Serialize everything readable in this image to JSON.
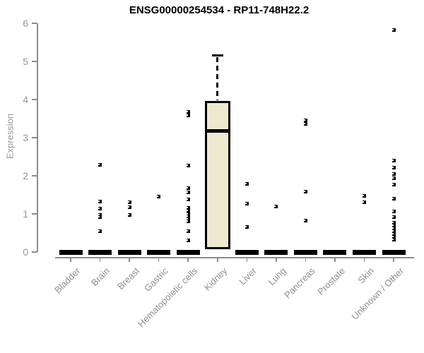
{
  "chart_data": {
    "type": "boxplot",
    "title": "ENSG00000254534 - RP11-748H22.2",
    "ylabel": "Expression",
    "xlabel": "",
    "ylim": [
      0,
      6
    ],
    "yticks": [
      0,
      1,
      2,
      3,
      4,
      5,
      6
    ],
    "grid": false,
    "legend": "none",
    "colors": {
      "box_fill": "#EDE8CF",
      "box_border": "#000000",
      "marker": "#000000",
      "axis": "#8c8c8c",
      "tick_label": "#979797",
      "title": "#000000",
      "background": "#ffffff"
    },
    "marker_style": "small-black-square",
    "categories": [
      "Bladder",
      "Brain",
      "Breast",
      "Gastric",
      "Hematopoietic cells",
      "Kidney",
      "Liver",
      "Lung",
      "Pancreas",
      "Prostate",
      "Skin",
      "Unknown / Other"
    ],
    "boxes": [
      {
        "category": "Bladder",
        "collapsed": true,
        "q1": 0,
        "median": 0,
        "q3": 0,
        "whisker_low": 0,
        "whisker_high": 0,
        "outliers": []
      },
      {
        "category": "Brain",
        "collapsed": true,
        "q1": 0,
        "median": 0,
        "q3": 0,
        "whisker_low": 0,
        "whisker_high": 0,
        "outliers": [
          2.28,
          1.32,
          1.13,
          0.98,
          0.91,
          0.54
        ]
      },
      {
        "category": "Breast",
        "collapsed": true,
        "q1": 0,
        "median": 0,
        "q3": 0,
        "whisker_low": 0,
        "whisker_high": 0,
        "outliers": [
          1.3,
          1.18,
          0.97
        ]
      },
      {
        "category": "Gastric",
        "collapsed": true,
        "q1": 0,
        "median": 0,
        "q3": 0,
        "whisker_low": 0,
        "whisker_high": 0,
        "outliers": [
          1.45
        ]
      },
      {
        "category": "Hematopoietic cells",
        "collapsed": true,
        "q1": 0,
        "median": 0,
        "q3": 0,
        "whisker_low": 0,
        "whisker_high": 0,
        "outliers": [
          3.68,
          3.58,
          2.27,
          1.68,
          1.56,
          1.38,
          1.15,
          1.08,
          1.0,
          0.93,
          0.87,
          0.8,
          0.55,
          0.3
        ]
      },
      {
        "category": "Kidney",
        "collapsed": false,
        "q1": 0.07,
        "median": 3.18,
        "q3": 3.97,
        "whisker_low": 0.07,
        "whisker_high": 5.15,
        "outliers": []
      },
      {
        "category": "Liver",
        "collapsed": true,
        "q1": 0,
        "median": 0,
        "q3": 0,
        "whisker_low": 0,
        "whisker_high": 0,
        "outliers": [
          1.79,
          1.27,
          0.66
        ]
      },
      {
        "category": "Lung",
        "collapsed": true,
        "q1": 0,
        "median": 0,
        "q3": 0,
        "whisker_low": 0,
        "whisker_high": 0,
        "outliers": [
          1.2
        ]
      },
      {
        "category": "Pancreas",
        "collapsed": true,
        "q1": 0,
        "median": 0,
        "q3": 0,
        "whisker_low": 0,
        "whisker_high": 0,
        "outliers": [
          3.46,
          3.37,
          1.58,
          0.83
        ]
      },
      {
        "category": "Prostate",
        "collapsed": true,
        "q1": 0,
        "median": 0,
        "q3": 0,
        "whisker_low": 0,
        "whisker_high": 0,
        "outliers": []
      },
      {
        "category": "Skin",
        "collapsed": true,
        "q1": 0,
        "median": 0,
        "q3": 0,
        "whisker_low": 0,
        "whisker_high": 0,
        "outliers": [
          1.47,
          1.31
        ]
      },
      {
        "category": "Unknown / Other",
        "collapsed": true,
        "q1": 0,
        "median": 0,
        "q3": 0,
        "whisker_low": 0,
        "whisker_high": 0,
        "outliers": [
          5.82,
          2.39,
          2.21,
          2.05,
          1.93,
          1.77,
          1.4,
          1.07,
          0.92,
          0.76,
          0.7,
          0.62,
          0.55,
          0.47,
          0.4,
          0.33
        ]
      }
    ]
  }
}
